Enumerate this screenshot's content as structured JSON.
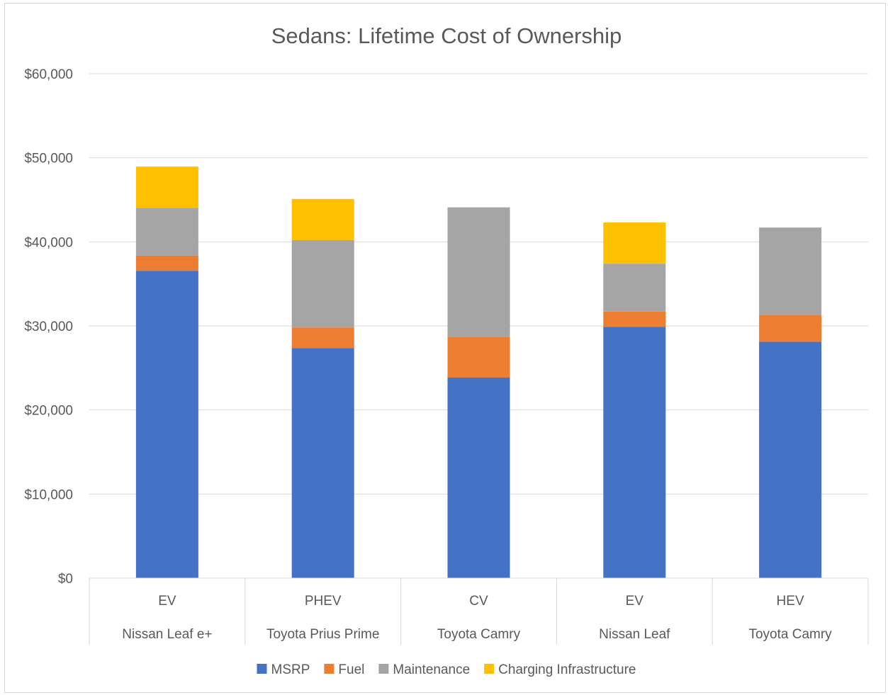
{
  "chart_data": {
    "type": "bar",
    "stacked": true,
    "title": "Sedans: Lifetime Cost of Ownership",
    "xlabel": "",
    "ylabel": "",
    "ylim": [
      0,
      60000
    ],
    "yticks": [
      0,
      10000,
      20000,
      30000,
      40000,
      50000,
      60000
    ],
    "ytick_labels": [
      "$0",
      "$10,000",
      "$20,000",
      "$30,000",
      "$40,000",
      "$50,000",
      "$60,000"
    ],
    "grid": true,
    "legend_position": "bottom",
    "categories": [
      {
        "type": "EV",
        "model": "Nissan Leaf e+"
      },
      {
        "type": "PHEV",
        "model": "Toyota Prius Prime"
      },
      {
        "type": "CV",
        "model": "Toyota Camry"
      },
      {
        "type": "EV",
        "model": "Nissan Leaf"
      },
      {
        "type": "HEV",
        "model": "Toyota Camry"
      }
    ],
    "series": [
      {
        "name": "MSRP",
        "color": "#4472c4",
        "values": [
          36550,
          27350,
          23850,
          29900,
          28100
        ]
      },
      {
        "name": "Fuel",
        "color": "#ed7d31",
        "values": [
          1800,
          2450,
          4800,
          1800,
          3200
        ]
      },
      {
        "name": "Maintenance",
        "color": "#a5a5a5",
        "values": [
          5700,
          10400,
          15450,
          5700,
          10400
        ]
      },
      {
        "name": "Charging Infrastructure",
        "color": "#ffc000",
        "values": [
          4900,
          4900,
          0,
          4900,
          0
        ]
      }
    ]
  }
}
